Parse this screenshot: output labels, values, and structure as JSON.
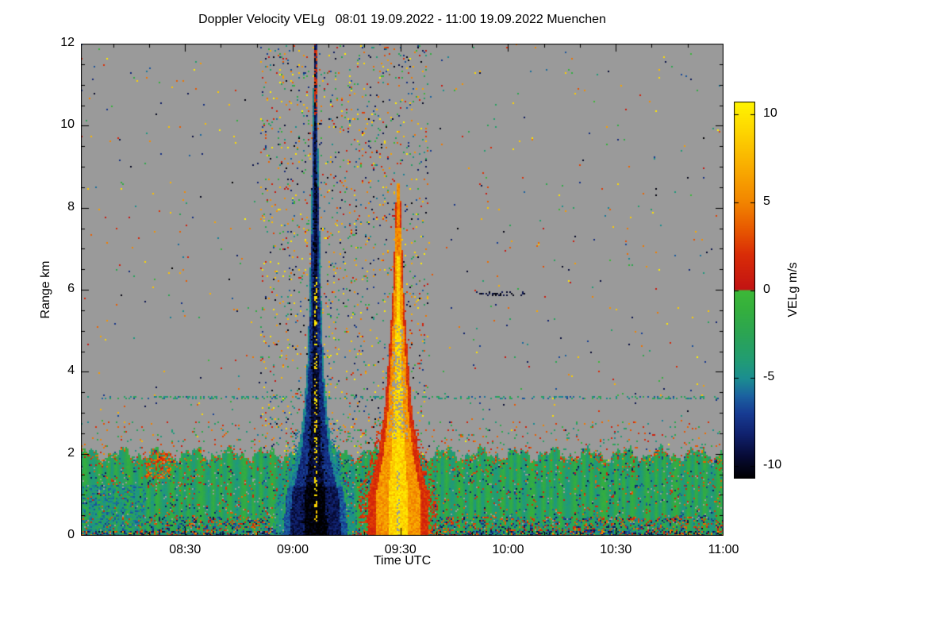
{
  "figure": {
    "title_full": "Doppler Velocity VELg   08:01 19.09.2022 - 11:00 19.09.2022 Muenchen"
  },
  "chart_data": {
    "type": "heatmap",
    "title": "Doppler Velocity VELg",
    "time_range": "08:01 19.09.2022 - 11:00 19.09.2022",
    "station": "Muenchen",
    "xlabel": "Time UTC",
    "ylabel": "Range km",
    "no_data_color": "#9a9a9a",
    "x_axis": {
      "start_hours": 8.0167,
      "end_hours": 11.0,
      "minor_tick_minutes": 10,
      "ticks": [
        {
          "label": "08:30",
          "hours": 8.5
        },
        {
          "label": "09:00",
          "hours": 9.0
        },
        {
          "label": "09:30",
          "hours": 9.5
        },
        {
          "label": "10:00",
          "hours": 10.0
        },
        {
          "label": "10:30",
          "hours": 10.5
        },
        {
          "label": "11:00",
          "hours": 11.0
        }
      ]
    },
    "y_axis": {
      "min_km": 0,
      "max_km": 12,
      "minor_tick_km": 0.5,
      "ticks": [
        {
          "label": "0",
          "km": 0
        },
        {
          "label": "2",
          "km": 2
        },
        {
          "label": "4",
          "km": 4
        },
        {
          "label": "6",
          "km": 6
        },
        {
          "label": "8",
          "km": 8
        },
        {
          "label": "10",
          "km": 10
        },
        {
          "label": "12",
          "km": 12
        }
      ]
    },
    "colorbar": {
      "label": "VELg m/s",
      "min": -10.72,
      "max": 10.72,
      "ticks": [
        {
          "label": "10",
          "value": 10
        },
        {
          "label": "5",
          "value": 5
        },
        {
          "label": "0",
          "value": 0
        },
        {
          "label": "-5",
          "value": -5
        },
        {
          "label": "-10",
          "value": -10
        }
      ],
      "stops": [
        [
          -10.72,
          "#000000"
        ],
        [
          -9.5,
          "#060a33"
        ],
        [
          -8.2,
          "#10216e"
        ],
        [
          -7.0,
          "#173c93"
        ],
        [
          -6.0,
          "#1b62a0"
        ],
        [
          -5.0,
          "#1b8e90"
        ],
        [
          -4.0,
          "#219c74"
        ],
        [
          -2.5,
          "#2ba453"
        ],
        [
          -1.0,
          "#35b03c"
        ],
        [
          -0.02,
          "#3cb838"
        ],
        [
          0.02,
          "#c21313"
        ],
        [
          2.0,
          "#d92c07"
        ],
        [
          3.5,
          "#e85a00"
        ],
        [
          5.0,
          "#f28500"
        ],
        [
          7.0,
          "#f9ad00"
        ],
        [
          9.0,
          "#fdd500"
        ],
        [
          10.72,
          "#fff500"
        ]
      ]
    },
    "features": {
      "boundary_layer": {
        "mean_top_km": 2.0,
        "velocity_range_ms": [
          -4.6,
          -0.9
        ]
      },
      "downdraft_plume": {
        "center_utc": "09:06",
        "center_hours": 9.105,
        "top_km": 12.0,
        "velocity_range_ms": [
          -10.7,
          -4.3
        ],
        "halfwidth_profile": [
          [
            0,
            0.15
          ],
          [
            1,
            0.135
          ],
          [
            2,
            0.08
          ],
          [
            3,
            0.055
          ],
          [
            4,
            0.04
          ],
          [
            5,
            0.032
          ],
          [
            6,
            0.026
          ],
          [
            8,
            0.018
          ],
          [
            10,
            0.011
          ],
          [
            12,
            0.007
          ]
        ],
        "core_streak": {
          "velocity_ms": 9.5,
          "height_range_km": [
            0.35,
            6.3
          ]
        },
        "top_red_segment_km": [
          10.25,
          12.0
        ]
      },
      "updraft_plume": {
        "center_utc": "09:29",
        "center_hours": 9.49,
        "top_km": 8.6,
        "velocity_range_ms": [
          0.9,
          10.6
        ],
        "halfwidth_profile": [
          [
            0,
            0.14
          ],
          [
            1,
            0.14
          ],
          [
            2,
            0.092
          ],
          [
            3,
            0.065
          ],
          [
            4,
            0.05
          ],
          [
            5,
            0.036
          ],
          [
            6,
            0.025
          ],
          [
            7,
            0.018
          ],
          [
            8,
            0.012
          ],
          [
            8.6,
            0.008
          ]
        ]
      },
      "noise_band_hours": [
        8.85,
        9.63
      ],
      "thin_layer_km": 3.38,
      "dash_layer": {
        "km": 5.9,
        "t": [
          9.85,
          10.08
        ]
      },
      "ground_clutter_top_km": 0.12,
      "patches": [
        {
          "t": [
            8.02,
            8.32
          ],
          "h": [
            0,
            1.25
          ],
          "vel": [
            -6.5,
            -4.0
          ],
          "density": 0.4
        },
        {
          "t": [
            8.32,
            8.44
          ],
          "h": [
            1.4,
            2.1
          ],
          "vel": [
            1.0,
            5.0
          ],
          "density": 0.5
        }
      ]
    }
  }
}
